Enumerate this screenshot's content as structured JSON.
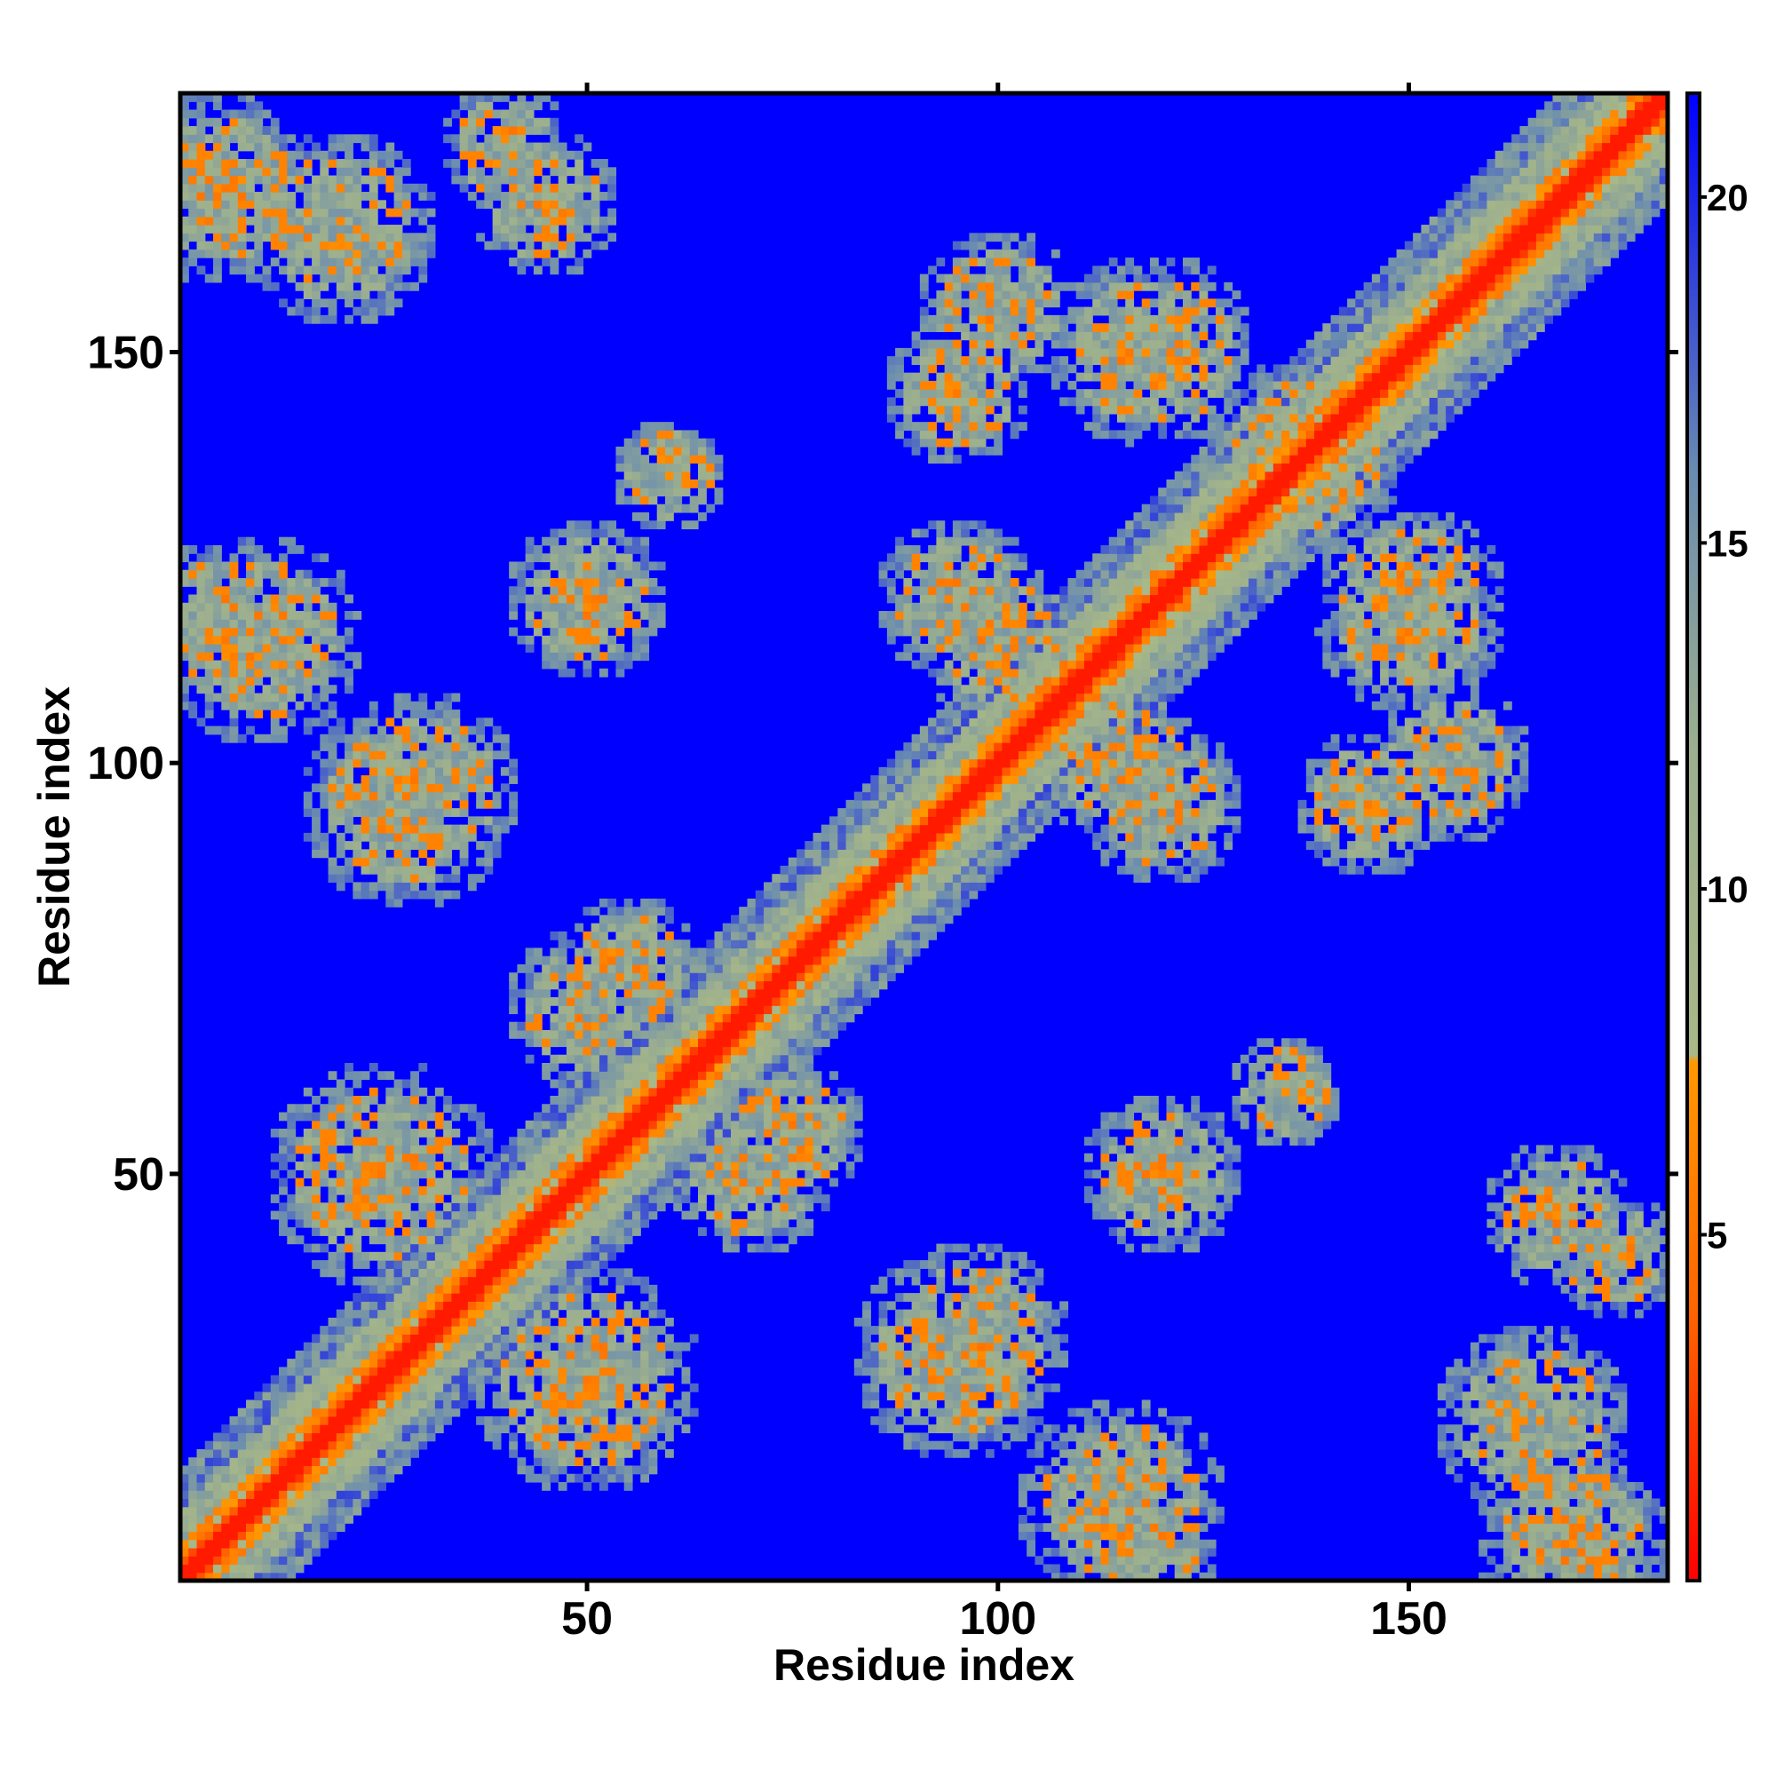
{
  "chart_data": {
    "type": "heatmap",
    "title": "",
    "xlabel": "Residue index",
    "ylabel": "Residue index",
    "n_residues": 181,
    "xlim": [
      1,
      181
    ],
    "ylim": [
      1,
      181
    ],
    "x_ticks": [
      50,
      100,
      150
    ],
    "y_ticks": [
      50,
      100,
      150
    ],
    "colorbar": {
      "ticks": [
        5,
        10,
        15,
        20
      ],
      "range": [
        0,
        21.5
      ],
      "stops": [
        {
          "value": 0,
          "color": "#ff0000"
        },
        {
          "value": 4,
          "color": "#ff6600"
        },
        {
          "value": 7.5,
          "color": "#ff9900"
        },
        {
          "value": 7.6,
          "color": "#a8b888"
        },
        {
          "value": 12,
          "color": "#9caf8e"
        },
        {
          "value": 16,
          "color": "#6a8cb0"
        },
        {
          "value": 21.5,
          "color": "#0000ff"
        }
      ]
    },
    "background_value": 21.5,
    "diagonal_band": {
      "center": 0,
      "width": [
        3.8,
        6.5,
        9.5,
        12.5,
        16.0
      ]
    },
    "contact_patches": [
      {
        "i": 5,
        "j": 170,
        "r": 12
      },
      {
        "i": 20,
        "j": 165,
        "r": 10
      },
      {
        "i": 45,
        "j": 168,
        "r": 9
      },
      {
        "i": 5,
        "j": 118,
        "r": 9
      },
      {
        "i": 30,
        "j": 97,
        "r": 12
      },
      {
        "i": 50,
        "j": 120,
        "r": 10
      },
      {
        "i": 60,
        "j": 135,
        "r": 7
      },
      {
        "i": 25,
        "j": 50,
        "r": 14
      },
      {
        "i": 50,
        "j": 25,
        "r": 12
      },
      {
        "i": 55,
        "j": 75,
        "r": 9
      },
      {
        "i": 70,
        "j": 50,
        "r": 10
      },
      {
        "i": 95,
        "j": 28,
        "r": 13
      },
      {
        "i": 115,
        "j": 10,
        "r": 13
      },
      {
        "i": 95,
        "j": 145,
        "r": 9
      },
      {
        "i": 118,
        "j": 150,
        "r": 12
      },
      {
        "i": 95,
        "j": 120,
        "r": 10
      },
      {
        "i": 115,
        "j": 100,
        "r": 10
      },
      {
        "i": 150,
        "j": 120,
        "r": 12
      },
      {
        "i": 140,
        "j": 135,
        "r": 9
      },
      {
        "i": 155,
        "j": 100,
        "r": 10
      },
      {
        "i": 165,
        "j": 20,
        "r": 12
      },
      {
        "i": 175,
        "j": 40,
        "r": 8
      }
    ]
  }
}
